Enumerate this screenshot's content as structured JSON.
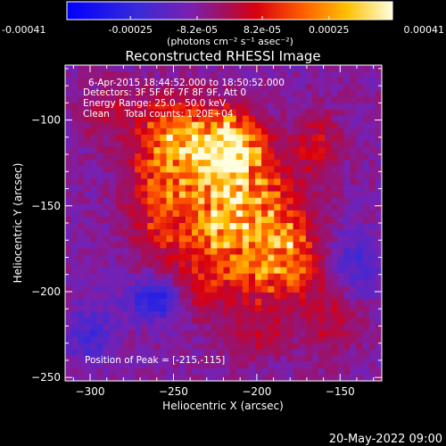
{
  "chart_data": {
    "type": "heatmap",
    "title": "Reconstructed RHESSI Image",
    "xlabel": "Heliocentric X (arcsec)",
    "ylabel": "Heliocentric Y (arcsec)",
    "xlim": [
      -315,
      -125
    ],
    "ylim": [
      -252,
      -68
    ],
    "x_ticks": [
      -300,
      -250,
      -200,
      -150
    ],
    "y_ticks": [
      -100,
      -150,
      -200,
      -250
    ],
    "colorbar": {
      "min": -0.00041,
      "max": 0.00041,
      "tick_values": [
        -0.00041,
        -0.00025,
        -8.2e-05,
        8.2e-05,
        0.00025,
        0.00041
      ],
      "tick_labels": [
        "-0.00041",
        "-0.00025",
        "-8.2e-05",
        "8.2e-05",
        "0.00025",
        "0.00041"
      ],
      "unit_label": "(photons cm⁻² s⁻¹ asec⁻²)"
    },
    "annotations": [
      "6-Apr-2015 18:44:52.000 to 18:50:52.000",
      "Detectors: 3F 5F 6F 7F 8F 9F, Att 0",
      "Energy Range: 25.0 - 50.0 keV",
      "Clean     Total counts: 1.20E+04"
    ],
    "peak_label": "Position of Peak = [-215,-115]",
    "peak": [
      -215,
      -115
    ],
    "blobs": [
      {
        "x": -247,
        "y": -108,
        "sx": 17,
        "sy": 15,
        "amp": 0.55
      },
      {
        "x": -215,
        "y": -112,
        "sx": 12,
        "sy": 12,
        "amp": 0.62
      },
      {
        "x": -222,
        "y": -128,
        "sx": 18,
        "sy": 16,
        "amp": 0.55
      },
      {
        "x": -205,
        "y": -148,
        "sx": 18,
        "sy": 18,
        "amp": 0.5
      },
      {
        "x": -258,
        "y": -140,
        "sx": 13,
        "sy": 20,
        "amp": 0.42
      },
      {
        "x": -228,
        "y": -168,
        "sx": 22,
        "sy": 14,
        "amp": 0.5
      },
      {
        "x": -180,
        "y": -172,
        "sx": 12,
        "sy": 16,
        "amp": 0.42
      },
      {
        "x": -195,
        "y": -190,
        "sx": 20,
        "sy": 14,
        "amp": 0.42
      },
      {
        "x": -165,
        "y": -115,
        "sx": 10,
        "sy": 14,
        "amp": 0.28
      },
      {
        "x": -290,
        "y": -95,
        "sx": 12,
        "sy": 12,
        "amp": 0.18
      },
      {
        "x": -155,
        "y": -215,
        "sx": 12,
        "sy": 16,
        "amp": 0.22
      },
      {
        "x": -235,
        "y": -200,
        "sx": 12,
        "sy": 10,
        "amp": 0.28
      },
      {
        "x": -200,
        "y": -225,
        "sx": 15,
        "sy": 10,
        "amp": 0.22
      }
    ],
    "negative_blobs": [
      {
        "x": -260,
        "y": -205,
        "sx": 12,
        "sy": 8,
        "amp": 0.45
      },
      {
        "x": -300,
        "y": -225,
        "sx": 10,
        "sy": 12,
        "amp": 0.25
      },
      {
        "x": -140,
        "y": -185,
        "sx": 12,
        "sy": 14,
        "amp": 0.25
      }
    ],
    "colormap": "RHESSI heat (blue-purple-red-orange-yellow-white)"
  },
  "footer": {
    "date": "20-May-2022 09:00"
  }
}
